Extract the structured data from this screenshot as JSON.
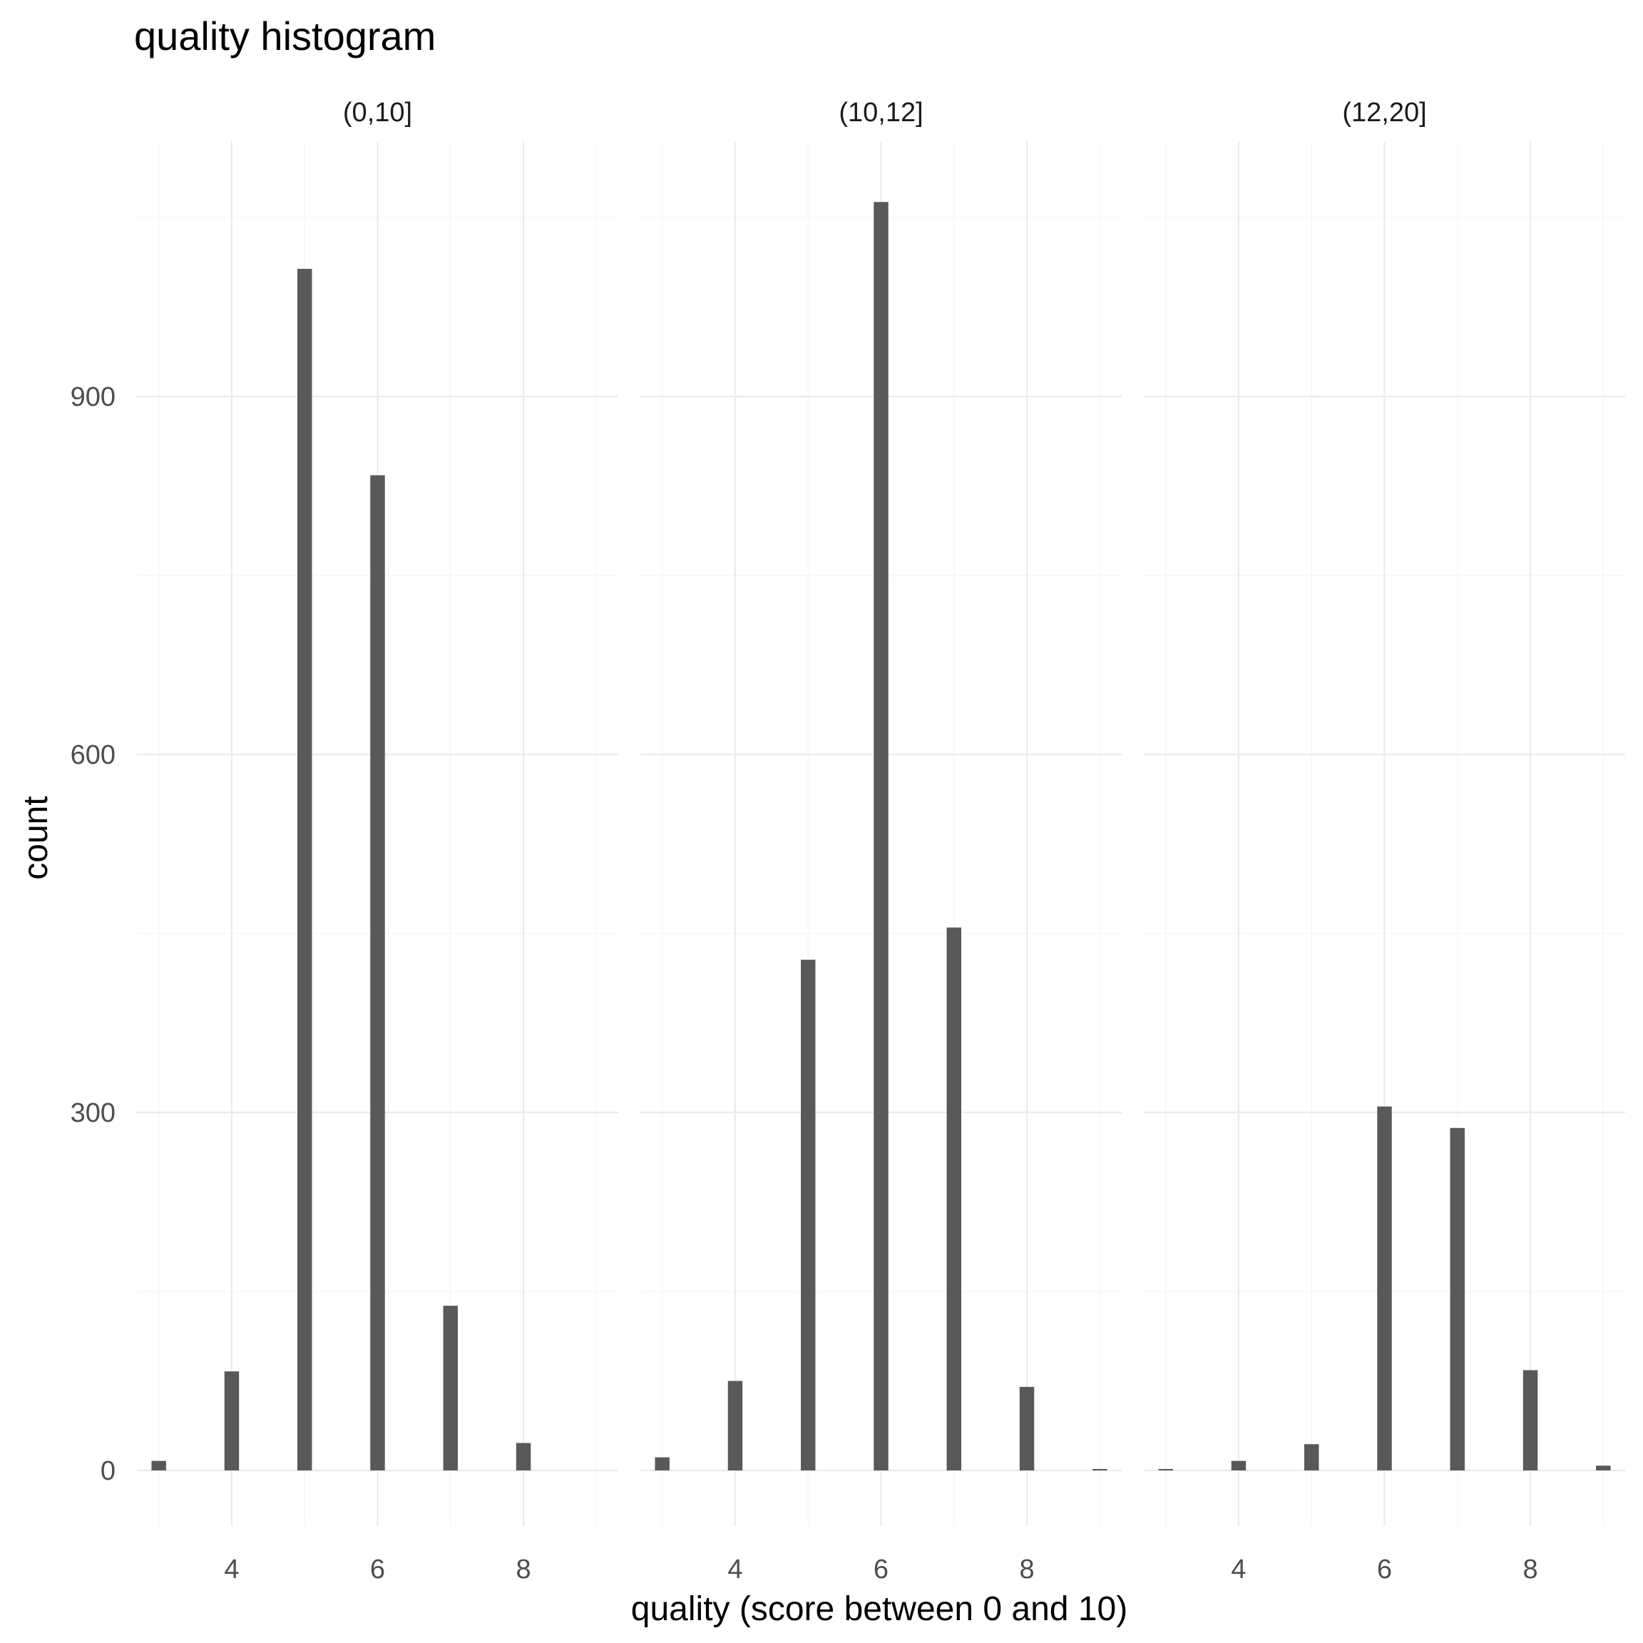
{
  "chart_data": {
    "type": "bar",
    "title": "quality histogram",
    "xlabel": "quality (score between 0 and 10)",
    "ylabel": "count",
    "facet_by": "alcohol",
    "x_ticks": [
      4,
      6,
      8
    ],
    "y_ticks": [
      0,
      300,
      600,
      900
    ],
    "xlim": [
      2.7,
      9.3
    ],
    "ylim": [
      0,
      1060
    ],
    "grid": true,
    "panels": [
      {
        "label": "(0,10]",
        "x": [
          3,
          4,
          5,
          6,
          7,
          8,
          9
        ],
        "values": [
          8,
          83,
          1007,
          834,
          138,
          23,
          0
        ]
      },
      {
        "label": "(10,12]",
        "x": [
          3,
          4,
          5,
          6,
          7,
          8,
          9
        ],
        "values": [
          11,
          75,
          428,
          1063,
          455,
          70,
          1
        ]
      },
      {
        "label": "(12,20]",
        "x": [
          3,
          4,
          5,
          6,
          7,
          8,
          9
        ],
        "values": [
          1,
          8,
          22,
          305,
          287,
          84,
          4
        ]
      }
    ]
  }
}
